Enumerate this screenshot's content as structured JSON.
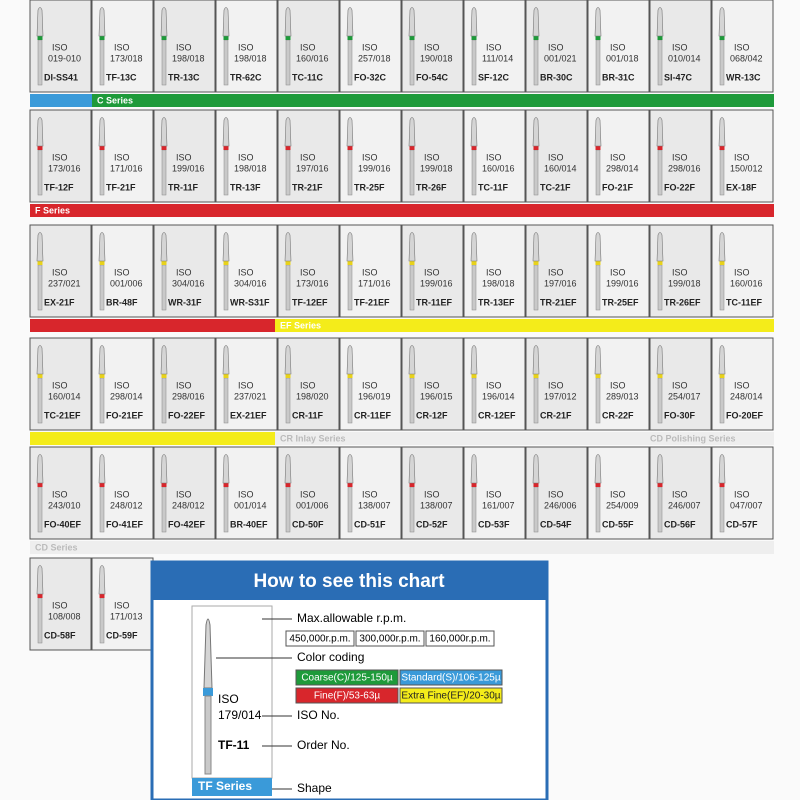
{
  "iso_label": "ISO",
  "rows": [
    {
      "cells": [
        [
          "019-010",
          "DI-SS41"
        ],
        [
          "173/018",
          "TF-13C"
        ],
        [
          "198/018",
          "TR-13C"
        ],
        [
          "198/018",
          "TR-62C"
        ],
        [
          "160/016",
          "TC-11C"
        ],
        [
          "257/018",
          "FO-32C"
        ],
        [
          "190/018",
          "FO-54C"
        ],
        [
          "111/014",
          "SF-12C"
        ],
        [
          "001/021",
          "BR-30C"
        ],
        [
          "001/018",
          "BR-31C"
        ],
        [
          "010/014",
          "SI-47C"
        ],
        [
          "068/042",
          "WR-13C"
        ]
      ],
      "band": "C Series"
    },
    {
      "cells": [
        [
          "173/016",
          "TF-12F"
        ],
        [
          "171/016",
          "TF-21F"
        ],
        [
          "199/016",
          "TR-11F"
        ],
        [
          "198/018",
          "TR-13F"
        ],
        [
          "197/016",
          "TR-21F"
        ],
        [
          "199/016",
          "TR-25F"
        ],
        [
          "199/018",
          "TR-26F"
        ],
        [
          "160/016",
          "TC-11F"
        ],
        [
          "160/014",
          "TC-21F"
        ],
        [
          "298/014",
          "FO-21F"
        ],
        [
          "298/016",
          "FO-22F"
        ],
        [
          "150/012",
          "EX-18F"
        ]
      ],
      "band": "F Series"
    },
    {
      "cells": [
        [
          "237/021",
          "EX-21F"
        ],
        [
          "001/006",
          "BR-48F"
        ],
        [
          "304/016",
          "WR-31F"
        ],
        [
          "304/016",
          "WR-S31F"
        ],
        [
          "173/016",
          "TF-12EF"
        ],
        [
          "171/016",
          "TF-21EF"
        ],
        [
          "199/016",
          "TR-11EF"
        ],
        [
          "198/018",
          "TR-13EF"
        ],
        [
          "197/016",
          "TR-21EF"
        ],
        [
          "199/016",
          "TR-25EF"
        ],
        [
          "199/018",
          "TR-26EF"
        ],
        [
          "160/016",
          "TC-11EF"
        ]
      ],
      "band": "EF Series"
    },
    {
      "cells": [
        [
          "160/014",
          "TC-21EF"
        ],
        [
          "298/014",
          "FO-21EF"
        ],
        [
          "298/016",
          "FO-22EF"
        ],
        [
          "237/021",
          "EX-21EF"
        ],
        [
          "198/020",
          "CR-11F"
        ],
        [
          "196/019",
          "CR-11EF"
        ],
        [
          "196/015",
          "CR-12F"
        ],
        [
          "196/014",
          "CR-12EF"
        ],
        [
          "197/012",
          "CR-21F"
        ],
        [
          "289/013",
          "CR-22F"
        ],
        [
          "254/017",
          "FO-30F"
        ],
        [
          "248/014",
          "FO-20EF"
        ]
      ],
      "band": "CR Inlay Series",
      "band2": "CD Polishing Series"
    },
    {
      "cells": [
        [
          "243/010",
          "FO-40EF"
        ],
        [
          "248/012",
          "FO-41EF"
        ],
        [
          "248/012",
          "FO-42EF"
        ],
        [
          "001/014",
          "BR-40EF"
        ],
        [
          "001/006",
          "CD-50F"
        ],
        [
          "138/007",
          "CD-51F"
        ],
        [
          "138/007",
          "CD-52F"
        ],
        [
          "161/007",
          "CD-53F"
        ],
        [
          "246/006",
          "CD-54F"
        ],
        [
          "254/009",
          "CD-55F"
        ],
        [
          "246/007",
          "CD-56F"
        ],
        [
          "047/007",
          "CD-57F"
        ]
      ],
      "band": "CD Series"
    },
    {
      "cells": [
        [
          "108/008",
          "CD-58F"
        ],
        [
          "171/013",
          "CD-59F"
        ]
      ]
    }
  ],
  "legend": {
    "title": "How to see this chart",
    "rpm_label": "Max.allowable r.p.m.",
    "rpm": [
      "450,000r.p.m.",
      "300,000r.p.m.",
      "160,000r.p.m."
    ],
    "color_label": "Color coding",
    "grits": [
      "Coarse(C)/125-150µ",
      "Standard(S)/106-125µ",
      "Fine(F)/53-63µ",
      "Extra Fine(EF)/20-30µ"
    ],
    "iso": "ISO",
    "iso_no": "179/014",
    "iso_label": "ISO No.",
    "order": "TF-11",
    "order_label": "Order No.",
    "series": "TF Series",
    "shape_label": "Shape"
  }
}
